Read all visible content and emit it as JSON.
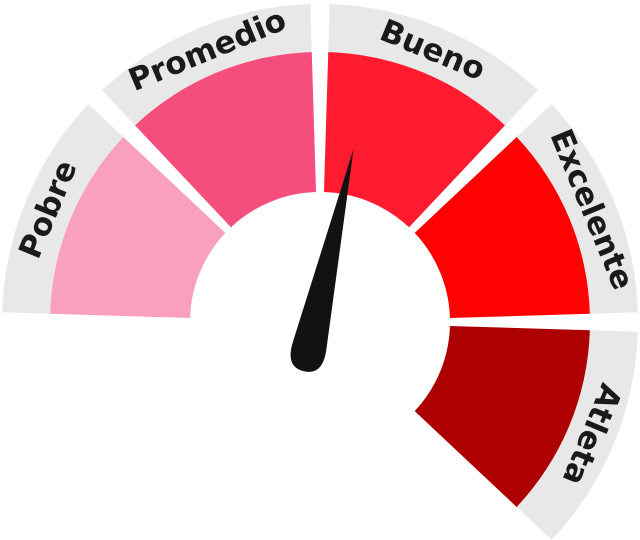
{
  "gauge": {
    "segments": [
      {
        "label": "Pobre",
        "color": "#f9a0bf"
      },
      {
        "label": "Promedio",
        "color": "#f54d7c"
      },
      {
        "label": "Bueno",
        "color": "#fe1a2f"
      },
      {
        "label": "Excelente",
        "color": "#fe0202"
      },
      {
        "label": "Atleta",
        "color": "#ad0000"
      }
    ],
    "band_color": "#e8e8e8",
    "needle_color": "#121212",
    "needle_level": "Bueno"
  }
}
